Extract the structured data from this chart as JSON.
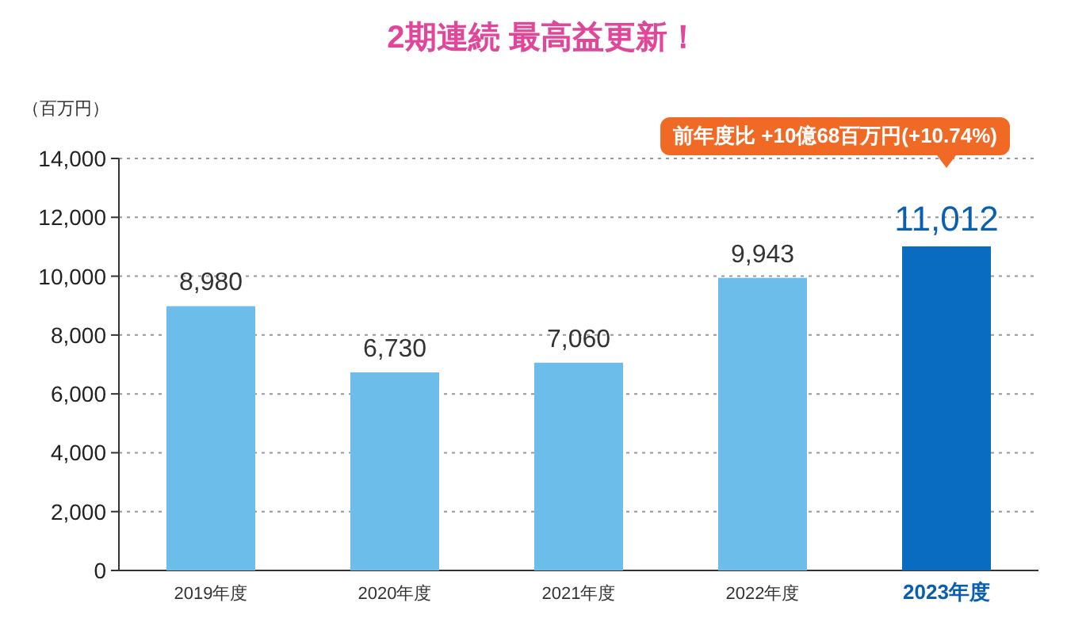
{
  "chart_data": {
    "type": "bar",
    "title": "2期連続 最高益更新！",
    "ylabel": "（百万円）",
    "categories": [
      "2019年度",
      "2020年度",
      "2021年度",
      "2022年度",
      "2023年度"
    ],
    "values": [
      8980,
      6730,
      7060,
      9943,
      11012
    ],
    "value_labels": [
      "8,980",
      "6,730",
      "7,060",
      "9,943",
      "11,012"
    ],
    "colors": [
      "#6cbde9",
      "#6cbde9",
      "#6cbde9",
      "#6cbde9",
      "#0a6cc0"
    ],
    "ylim": [
      0,
      14000
    ],
    "yticks": [
      {
        "value": 0,
        "label": "0"
      },
      {
        "value": 2000,
        "label": "2,000"
      },
      {
        "value": 4000,
        "label": "4,000"
      },
      {
        "value": 6000,
        "label": "6,000"
      },
      {
        "value": 8000,
        "label": "8,000"
      },
      {
        "value": 10000,
        "label": "10,000"
      },
      {
        "value": 12000,
        "label": "12,000"
      },
      {
        "value": 14000,
        "label": "14,000"
      }
    ],
    "grid": "y",
    "annotations": [
      "前年度比 +10億68百万円(+10.74%)"
    ]
  }
}
